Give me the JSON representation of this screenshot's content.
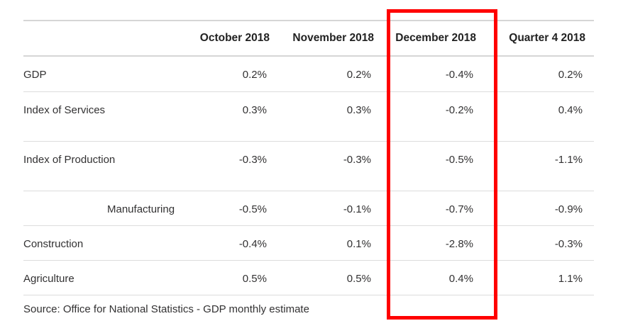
{
  "table": {
    "columns": [
      "",
      "October 2018",
      "November 2018",
      "December 2018",
      "Quarter 4 2018"
    ],
    "rows": [
      {
        "label": "GDP",
        "indent": false,
        "values": [
          "0.2%",
          "0.2%",
          "-0.4%",
          "0.2%"
        ]
      },
      {
        "label": "Index of Services",
        "indent": false,
        "values": [
          "0.3%",
          "0.3%",
          "-0.2%",
          "0.4%"
        ]
      },
      {
        "label": "Index of Production",
        "indent": false,
        "values": [
          "-0.3%",
          "-0.3%",
          "-0.5%",
          "-1.1%"
        ]
      },
      {
        "label": "Manufacturing",
        "indent": true,
        "values": [
          "-0.5%",
          "-0.1%",
          "-0.7%",
          "-0.9%"
        ]
      },
      {
        "label": "Construction",
        "indent": false,
        "values": [
          "-0.4%",
          "0.1%",
          "-2.8%",
          "-0.3%"
        ]
      },
      {
        "label": "Agriculture",
        "indent": false,
        "values": [
          "0.5%",
          "0.5%",
          "0.4%",
          "1.1%"
        ]
      }
    ]
  },
  "source": "Source: Office for National Statistics - GDP monthly estimate",
  "highlight": {
    "column": "December 2018",
    "color": "#ff0000"
  }
}
